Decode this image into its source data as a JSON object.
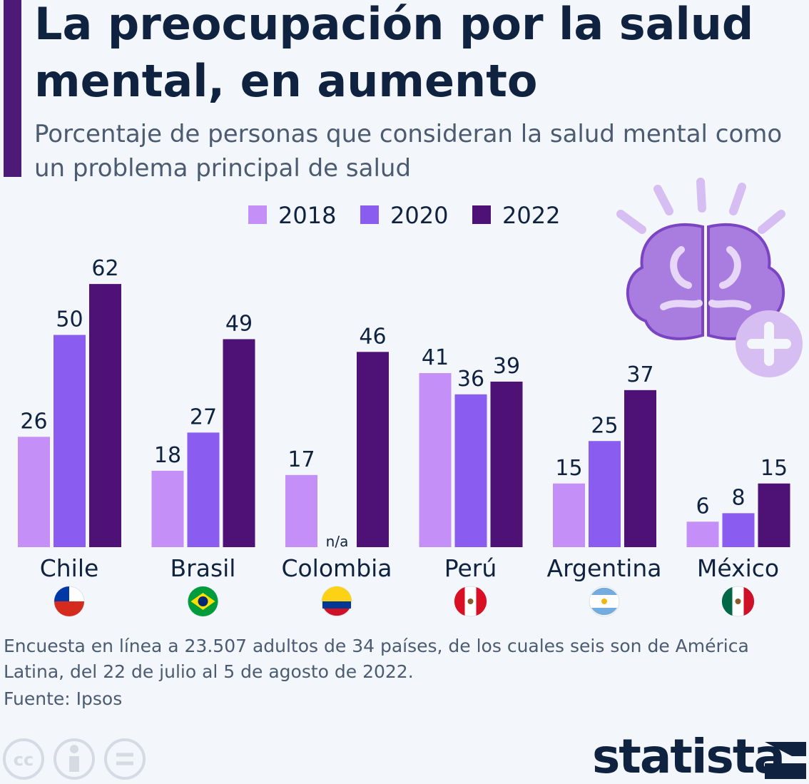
{
  "chart_data": {
    "type": "bar",
    "title": "La preocupación por la salud mental, en aumento",
    "subtitle": "Porcentaje de personas que consideran la salud mental como un problema principal de salud",
    "categories": [
      "Chile",
      "Brasil",
      "Colombia",
      "Perú",
      "Argentina",
      "México"
    ],
    "series": [
      {
        "name": "2018",
        "color": "#c490f8",
        "values": [
          26,
          18,
          17,
          41,
          15,
          6
        ]
      },
      {
        "name": "2020",
        "color": "#8b5cf0",
        "values": [
          50,
          27,
          null,
          36,
          25,
          8
        ],
        "value_labels": [
          null,
          null,
          "n/a",
          null,
          null,
          null
        ]
      },
      {
        "name": "2022",
        "color": "#4e1277",
        "values": [
          62,
          49,
          46,
          39,
          37,
          15
        ]
      }
    ],
    "note": "Encuesta en línea a 23.507 adultos de 34 países, de los cuales seis son de América Latina, del 22 de julio al 5 de agosto de 2022.",
    "source": "Fuente: Ipsos",
    "brand": "statista"
  }
}
